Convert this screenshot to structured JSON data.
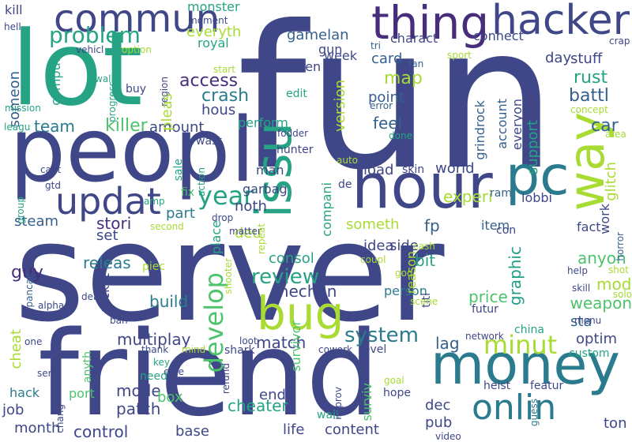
{
  "palette": [
    "#3f4788",
    "#2b7b8e",
    "#26a384",
    "#4dc36b",
    "#a8db34",
    "#472d7b",
    "#35608d",
    "#1f9e89"
  ],
  "words": [
    {
      "text": "fun",
      "color": "#3f4788",
      "rotate": false
    },
    {
      "text": "server",
      "color": "#3f4788",
      "rotate": false
    },
    {
      "text": "friend",
      "color": "#3f4788",
      "rotate": false
    },
    {
      "text": "lot",
      "color": "#26a384",
      "rotate": false
    },
    {
      "text": "peopl",
      "color": "#3f4788",
      "rotate": false
    },
    {
      "text": "hour",
      "color": "#3f4788",
      "rotate": false
    },
    {
      "text": "money",
      "color": "#2b7b8e",
      "rotate": false
    },
    {
      "text": "thing",
      "color": "#472d7b",
      "rotate": false
    },
    {
      "text": "hacker",
      "color": "#3f4788",
      "rotate": false
    },
    {
      "text": "commun",
      "color": "#3f4788",
      "rotate": false
    },
    {
      "text": "bug",
      "color": "#a8db34",
      "rotate": false
    },
    {
      "text": "pc",
      "color": "#2b7b8e",
      "rotate": false
    },
    {
      "text": "issu",
      "color": "#26a384",
      "rotate": true
    },
    {
      "text": "way",
      "color": "#a8db34",
      "rotate": true
    },
    {
      "text": "updat",
      "color": "#3f4788",
      "rotate": false
    },
    {
      "text": "onlin",
      "color": "#2b7b8e",
      "rotate": false
    },
    {
      "text": "develop",
      "color": "#4dc36b",
      "rotate": true
    },
    {
      "text": "problem",
      "color": "#26a384",
      "rotate": false
    },
    {
      "text": "year",
      "color": "#26a384",
      "rotate": false
    },
    {
      "text": "minut",
      "color": "#a8db34",
      "rotate": false
    },
    {
      "text": "review",
      "color": "#26a384",
      "rotate": false
    },
    {
      "text": "system",
      "color": "#2b7b8e",
      "rotate": false
    },
    {
      "text": "access",
      "color": "#472d7b",
      "rotate": false
    },
    {
      "text": "crash",
      "color": "#2b7b8e",
      "rotate": false
    },
    {
      "text": "gamelan",
      "color": "#35608d",
      "rotate": false
    },
    {
      "text": "map",
      "color": "#a8db34",
      "rotate": false
    },
    {
      "text": "rust",
      "color": "#26a384",
      "rotate": false
    },
    {
      "text": "battl",
      "color": "#35608d",
      "rotate": false
    },
    {
      "text": "car",
      "color": "#35608d",
      "rotate": false
    },
    {
      "text": "killer",
      "color": "#4dc36b",
      "rotate": false
    },
    {
      "text": "team",
      "color": "#2b7b8e",
      "rotate": false
    },
    {
      "text": "stori",
      "color": "#472d7b",
      "rotate": false
    },
    {
      "text": "steam",
      "color": "#35608d",
      "rotate": false
    },
    {
      "text": "guy",
      "color": "#472d7b",
      "rotate": false
    },
    {
      "text": "mechan",
      "color": "#3f4788",
      "rotate": false
    },
    {
      "text": "multiplay",
      "color": "#3f4788",
      "rotate": false
    },
    {
      "text": "mode",
      "color": "#3f4788",
      "rotate": false
    },
    {
      "text": "patch",
      "color": "#3f4788",
      "rotate": false
    },
    {
      "text": "control",
      "color": "#3f4788",
      "rotate": false
    },
    {
      "text": "cheater",
      "color": "#26a384",
      "rotate": false
    },
    {
      "text": "content",
      "color": "#3f4788",
      "rotate": false
    },
    {
      "text": "life",
      "color": "#3f4788",
      "rotate": false
    },
    {
      "text": "match",
      "color": "#3f4788",
      "rotate": false
    },
    {
      "text": "weapon",
      "color": "#4dc36b",
      "rotate": false
    },
    {
      "text": "optim",
      "color": "#3f4788",
      "rotate": false
    },
    {
      "text": "mod",
      "color": "#a8db34",
      "rotate": false
    },
    {
      "text": "price",
      "color": "#4dc36b",
      "rotate": false
    },
    {
      "text": "graphic",
      "color": "#1f9e89",
      "rotate": true
    },
    {
      "text": "experi",
      "color": "#a8db34",
      "rotate": false
    },
    {
      "text": "someth",
      "color": "#a8db34",
      "rotate": false
    },
    {
      "text": "world",
      "color": "#3f4788",
      "rotate": false
    },
    {
      "text": "load",
      "color": "#3f4788",
      "rotate": false
    },
    {
      "text": "feel",
      "color": "#35608d",
      "rotate": false
    },
    {
      "text": "point",
      "color": "#35608d",
      "rotate": false
    },
    {
      "text": "card",
      "color": "#35608d",
      "rotate": false
    },
    {
      "text": "charact",
      "color": "#3f4788",
      "rotate": false
    },
    {
      "text": "week",
      "color": "#3f4788",
      "rotate": false
    },
    {
      "text": "connect",
      "color": "#3f4788",
      "rotate": false
    },
    {
      "text": "day",
      "color": "#3f4788",
      "rotate": false
    },
    {
      "text": "stuff",
      "color": "#3f4788",
      "rotate": false
    },
    {
      "text": "everyth",
      "color": "#a8db34",
      "rotate": false
    },
    {
      "text": "royal",
      "color": "#26a384",
      "rotate": false
    },
    {
      "text": "monster",
      "color": "#26a384",
      "rotate": false
    },
    {
      "text": "kill",
      "color": "#3f4788",
      "rotate": false
    },
    {
      "text": "gun",
      "color": "#3f4788",
      "rotate": false
    },
    {
      "text": "screen",
      "color": "#3f4788",
      "rotate": false
    },
    {
      "text": "someon",
      "color": "#35608d",
      "rotate": true
    },
    {
      "text": "comput",
      "color": "#26a384",
      "rotate": true
    },
    {
      "text": "amount",
      "color": "#3f4788",
      "rotate": false
    },
    {
      "text": "hous",
      "color": "#3f4788",
      "rotate": false
    },
    {
      "text": "perform",
      "color": "#26a384",
      "rotate": false
    },
    {
      "text": "noth",
      "color": "#3f4788",
      "rotate": false
    },
    {
      "text": "man",
      "color": "#3f4788",
      "rotate": false
    },
    {
      "text": "garbag",
      "color": "#3f4788",
      "rotate": false
    },
    {
      "text": "part",
      "color": "#2b7b8e",
      "rotate": false
    },
    {
      "text": "set",
      "color": "#3f4788",
      "rotate": false
    },
    {
      "text": "releas",
      "color": "#2b7b8e",
      "rotate": false
    },
    {
      "text": "deu",
      "color": "#a8db34",
      "rotate": false
    },
    {
      "text": "build",
      "color": "#2b7b8e",
      "rotate": false
    },
    {
      "text": "place",
      "color": "#26a384",
      "rotate": true
    },
    {
      "text": "rocket",
      "color": "#3f4788",
      "rotate": true
    },
    {
      "text": "cheat",
      "color": "#a8db34",
      "rotate": true
    },
    {
      "text": "hack",
      "color": "#2b7b8e",
      "rotate": false
    },
    {
      "text": "job",
      "color": "#3f4788",
      "rotate": false
    },
    {
      "text": "month",
      "color": "#3f4788",
      "rotate": false
    },
    {
      "text": "base",
      "color": "#3f4788",
      "rotate": false
    },
    {
      "text": "end",
      "color": "#3f4788",
      "rotate": false
    },
    {
      "text": "box",
      "color": "#4dc36b",
      "rotate": false
    },
    {
      "text": "port",
      "color": "#4dc36b",
      "rotate": false
    },
    {
      "text": "survivor",
      "color": "#4dc36b",
      "rotate": true
    },
    {
      "text": "surviv",
      "color": "#4dc36b",
      "rotate": true
    },
    {
      "text": "idea",
      "color": "#3f4788",
      "rotate": false
    },
    {
      "text": "bit",
      "color": "#26a384",
      "rotate": false
    },
    {
      "text": "anyon",
      "color": "#4dc36b",
      "rotate": false
    },
    {
      "text": "lag",
      "color": "#35608d",
      "rotate": false
    },
    {
      "text": "dec",
      "color": "#3f4788",
      "rotate": false
    },
    {
      "text": "pub",
      "color": "#3f4788",
      "rotate": false
    },
    {
      "text": "ton",
      "color": "#3f4788",
      "rotate": false
    },
    {
      "text": "fp",
      "color": "#35608d",
      "rotate": false
    },
    {
      "text": "item",
      "color": "#35608d",
      "rotate": false
    },
    {
      "text": "fact",
      "color": "#3f4788",
      "rotate": false
    },
    {
      "text": "work",
      "color": "#3f4788",
      "rotate": true
    },
    {
      "text": "glitch",
      "color": "#a8db34",
      "rotate": true
    },
    {
      "text": "lobbi",
      "color": "#3f4788",
      "rotate": false
    },
    {
      "text": "support",
      "color": "#26a384",
      "rotate": true
    },
    {
      "text": "everyon",
      "color": "#3f4788",
      "rotate": true
    },
    {
      "text": "account",
      "color": "#35608d",
      "rotate": true
    },
    {
      "text": "grindrock",
      "color": "#35608d",
      "rotate": true
    },
    {
      "text": "version",
      "color": "#a8db34",
      "rotate": true
    },
    {
      "text": "compani",
      "color": "#26a384",
      "rotate": true
    },
    {
      "text": "side",
      "color": "#3f4788",
      "rotate": false
    },
    {
      "text": "consol",
      "color": "#26a384",
      "rotate": false
    },
    {
      "text": "person",
      "color": "#2b7b8e",
      "rotate": false
    },
    {
      "text": "reason",
      "color": "#a8db34",
      "rotate": true
    },
    {
      "text": "sta",
      "color": "#35608d",
      "rotate": false
    },
    {
      "text": "skin",
      "color": "#3f4788",
      "rotate": false
    },
    {
      "text": "ram",
      "color": "#35608d",
      "rotate": false
    },
    {
      "text": "con",
      "color": "#3f4788",
      "rotate": false
    },
    {
      "text": "hunter",
      "color": "#3f4788",
      "rotate": false
    },
    {
      "text": "fodder",
      "color": "#3f4788",
      "rotate": false
    },
    {
      "text": "done",
      "color": "#26a384",
      "rotate": false
    },
    {
      "text": "edit",
      "color": "#26a384",
      "rotate": false
    },
    {
      "text": "error",
      "color": "#35608d",
      "rotate": false
    },
    {
      "text": "tri",
      "color": "#35608d",
      "rotate": false
    },
    {
      "text": "fan",
      "color": "#35608d",
      "rotate": false
    },
    {
      "text": "sport",
      "color": "#a8db34",
      "rotate": false
    },
    {
      "text": "crap",
      "color": "#3f4788",
      "rotate": false
    },
    {
      "text": "concept",
      "color": "#a8db34",
      "rotate": false
    },
    {
      "text": "area",
      "color": "#a8db34",
      "rotate": false
    },
    {
      "text": "horror",
      "color": "#35608d",
      "rotate": true
    },
    {
      "text": "help",
      "color": "#3f4788",
      "rotate": false
    },
    {
      "text": "shot",
      "color": "#a8db34",
      "rotate": false
    },
    {
      "text": "skill",
      "color": "#3f4788",
      "rotate": false
    },
    {
      "text": "solo",
      "color": "#a8db34",
      "rotate": false
    },
    {
      "text": "menu",
      "color": "#3f4788",
      "rotate": false
    },
    {
      "text": "futur",
      "color": "#3f4788",
      "rotate": false
    },
    {
      "text": "china",
      "color": "#26a384",
      "rotate": false
    },
    {
      "text": "custom",
      "color": "#26a384",
      "rotate": false
    },
    {
      "text": "network",
      "color": "#3f4788",
      "rotate": false
    },
    {
      "text": "titl",
      "color": "#3f4788",
      "rotate": true
    },
    {
      "text": "cash",
      "color": "#a8db34",
      "rotate": false
    },
    {
      "text": "scene",
      "color": "#a8db34",
      "rotate": false
    },
    {
      "text": "god",
      "color": "#a8db34",
      "rotate": false
    },
    {
      "text": "coupl",
      "color": "#a8db34",
      "rotate": false
    },
    {
      "text": "level",
      "color": "#3f4788",
      "rotate": false
    },
    {
      "text": "goal",
      "color": "#a8db34",
      "rotate": false
    },
    {
      "text": "hope",
      "color": "#3f4788",
      "rotate": false
    },
    {
      "text": "heist",
      "color": "#3f4788",
      "rotate": false
    },
    {
      "text": "featur",
      "color": "#3f4788",
      "rotate": false
    },
    {
      "text": "guess",
      "color": "#2b7b8e",
      "rotate": true
    },
    {
      "text": "video",
      "color": "#3f4788",
      "rotate": false
    },
    {
      "text": "wait",
      "color": "#26a384",
      "rotate": false
    },
    {
      "text": "improv",
      "color": "#3f4788",
      "rotate": true
    },
    {
      "text": "cowork",
      "color": "#3f4788",
      "rotate": false
    },
    {
      "text": "loot",
      "color": "#3f4788",
      "rotate": false
    },
    {
      "text": "shark",
      "color": "#3f4788",
      "rotate": false
    },
    {
      "text": "refund",
      "color": "#3f4788",
      "rotate": true
    },
    {
      "text": "mind",
      "color": "#a8db34",
      "rotate": false
    },
    {
      "text": "key",
      "color": "#26a384",
      "rotate": false
    },
    {
      "text": "core",
      "color": "#3f4788",
      "rotate": false
    },
    {
      "text": "need",
      "color": "#26a384",
      "rotate": false
    },
    {
      "text": "thank",
      "color": "#3f4788",
      "rotate": false
    },
    {
      "text": "anyth",
      "color": "#4dc36b",
      "rotate": true
    },
    {
      "text": "chang",
      "color": "#3f4788",
      "rotate": true
    },
    {
      "text": "seri",
      "color": "#3f4788",
      "rotate": false
    },
    {
      "text": "one",
      "color": "#3f4788",
      "rotate": false
    },
    {
      "text": "alpha",
      "color": "#3f4788",
      "rotate": false
    },
    {
      "text": "pancak",
      "color": "#35608d",
      "rotate": true
    },
    {
      "text": "death",
      "color": "#3f4788",
      "rotate": false
    },
    {
      "text": "piec",
      "color": "#a8db34",
      "rotate": false
    },
    {
      "text": "ban",
      "color": "#3f4788",
      "rotate": false
    },
    {
      "text": "shooter",
      "color": "#a8db34",
      "rotate": true
    },
    {
      "text": "matter",
      "color": "#3f4788",
      "rotate": false
    },
    {
      "text": "second",
      "color": "#a8db34",
      "rotate": false
    },
    {
      "text": "drop",
      "color": "#3f4788",
      "rotate": false
    },
    {
      "text": "fix",
      "color": "#4dc36b",
      "rotate": false
    },
    {
      "text": "sale",
      "color": "#26a384",
      "rotate": true
    },
    {
      "text": "action",
      "color": "#26a384",
      "rotate": true
    },
    {
      "text": "wast",
      "color": "#3f4788",
      "rotate": false
    },
    {
      "text": "repeat",
      "color": "#a8db34",
      "rotate": true
    },
    {
      "text": "auto",
      "color": "#a8db34",
      "rotate": false
    },
    {
      "text": "de",
      "color": "#3f4788",
      "rotate": false
    },
    {
      "text": "amp",
      "color": "#26a384",
      "rotate": false
    },
    {
      "text": "group",
      "color": "#26a384",
      "rotate": true
    },
    {
      "text": "gtd",
      "color": "#3f4788",
      "rotate": false
    },
    {
      "text": "cant",
      "color": "#3f4788",
      "rotate": false
    },
    {
      "text": "leagu",
      "color": "#26a384",
      "rotate": false
    },
    {
      "text": "mission",
      "color": "#26a384",
      "rotate": false
    },
    {
      "text": "wall",
      "color": "#26a384",
      "rotate": false
    },
    {
      "text": "progress",
      "color": "#26a384",
      "rotate": true
    },
    {
      "text": "buy",
      "color": "#3f4788",
      "rotate": false
    },
    {
      "text": "region",
      "color": "#3f4788",
      "rotate": true
    },
    {
      "text": "start",
      "color": "#a8db34",
      "rotate": false
    },
    {
      "text": "vehicl",
      "color": "#3f4788",
      "rotate": false
    },
    {
      "text": "option",
      "color": "#a8db34",
      "rotate": false
    },
    {
      "text": "moment",
      "color": "#3f4788",
      "rotate": false
    },
    {
      "text": "hell",
      "color": "#3f4788",
      "rotate": false
    },
    {
      "text": "pleas",
      "color": "#a8db34",
      "rotate": true
    }
  ]
}
